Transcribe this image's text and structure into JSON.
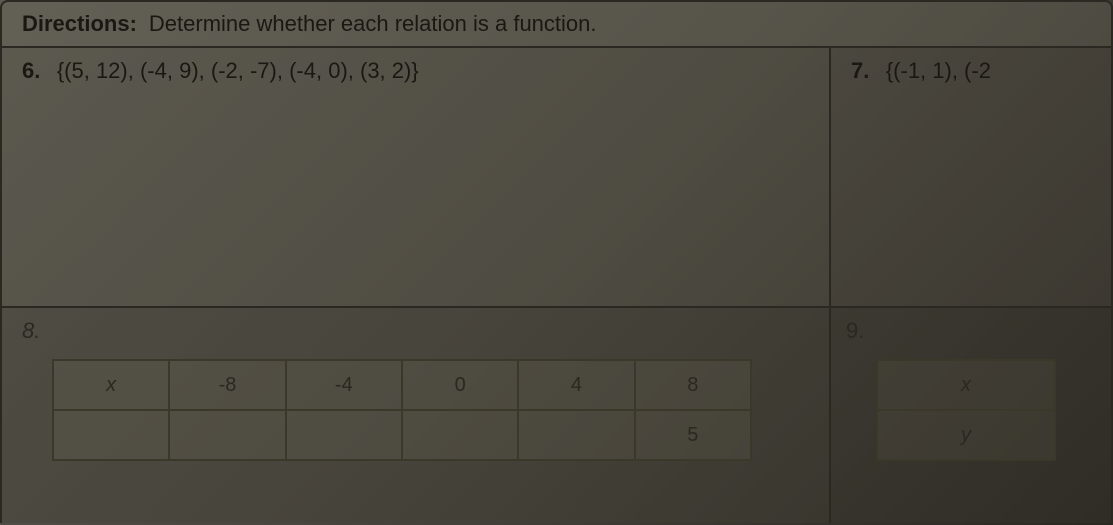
{
  "directions": {
    "label": "Directions:",
    "text": "Determine whether each relation is a function."
  },
  "problem6": {
    "number": "6.",
    "content": "{(5, 12), (-4, 9), (-2, -7), (-4, 0), (3, 2)}"
  },
  "problem7": {
    "number": "7.",
    "content": "{(-1, 1), (-2"
  },
  "problem8": {
    "number": "8.",
    "table": {
      "row1": [
        "x",
        "-8",
        "-4",
        "0",
        "4",
        "8"
      ],
      "row2": [
        "",
        "",
        "",
        "",
        "",
        "5"
      ]
    }
  },
  "problem9": {
    "number": "9.",
    "table": {
      "row1": [
        "x"
      ],
      "row2": [
        "y"
      ]
    }
  }
}
